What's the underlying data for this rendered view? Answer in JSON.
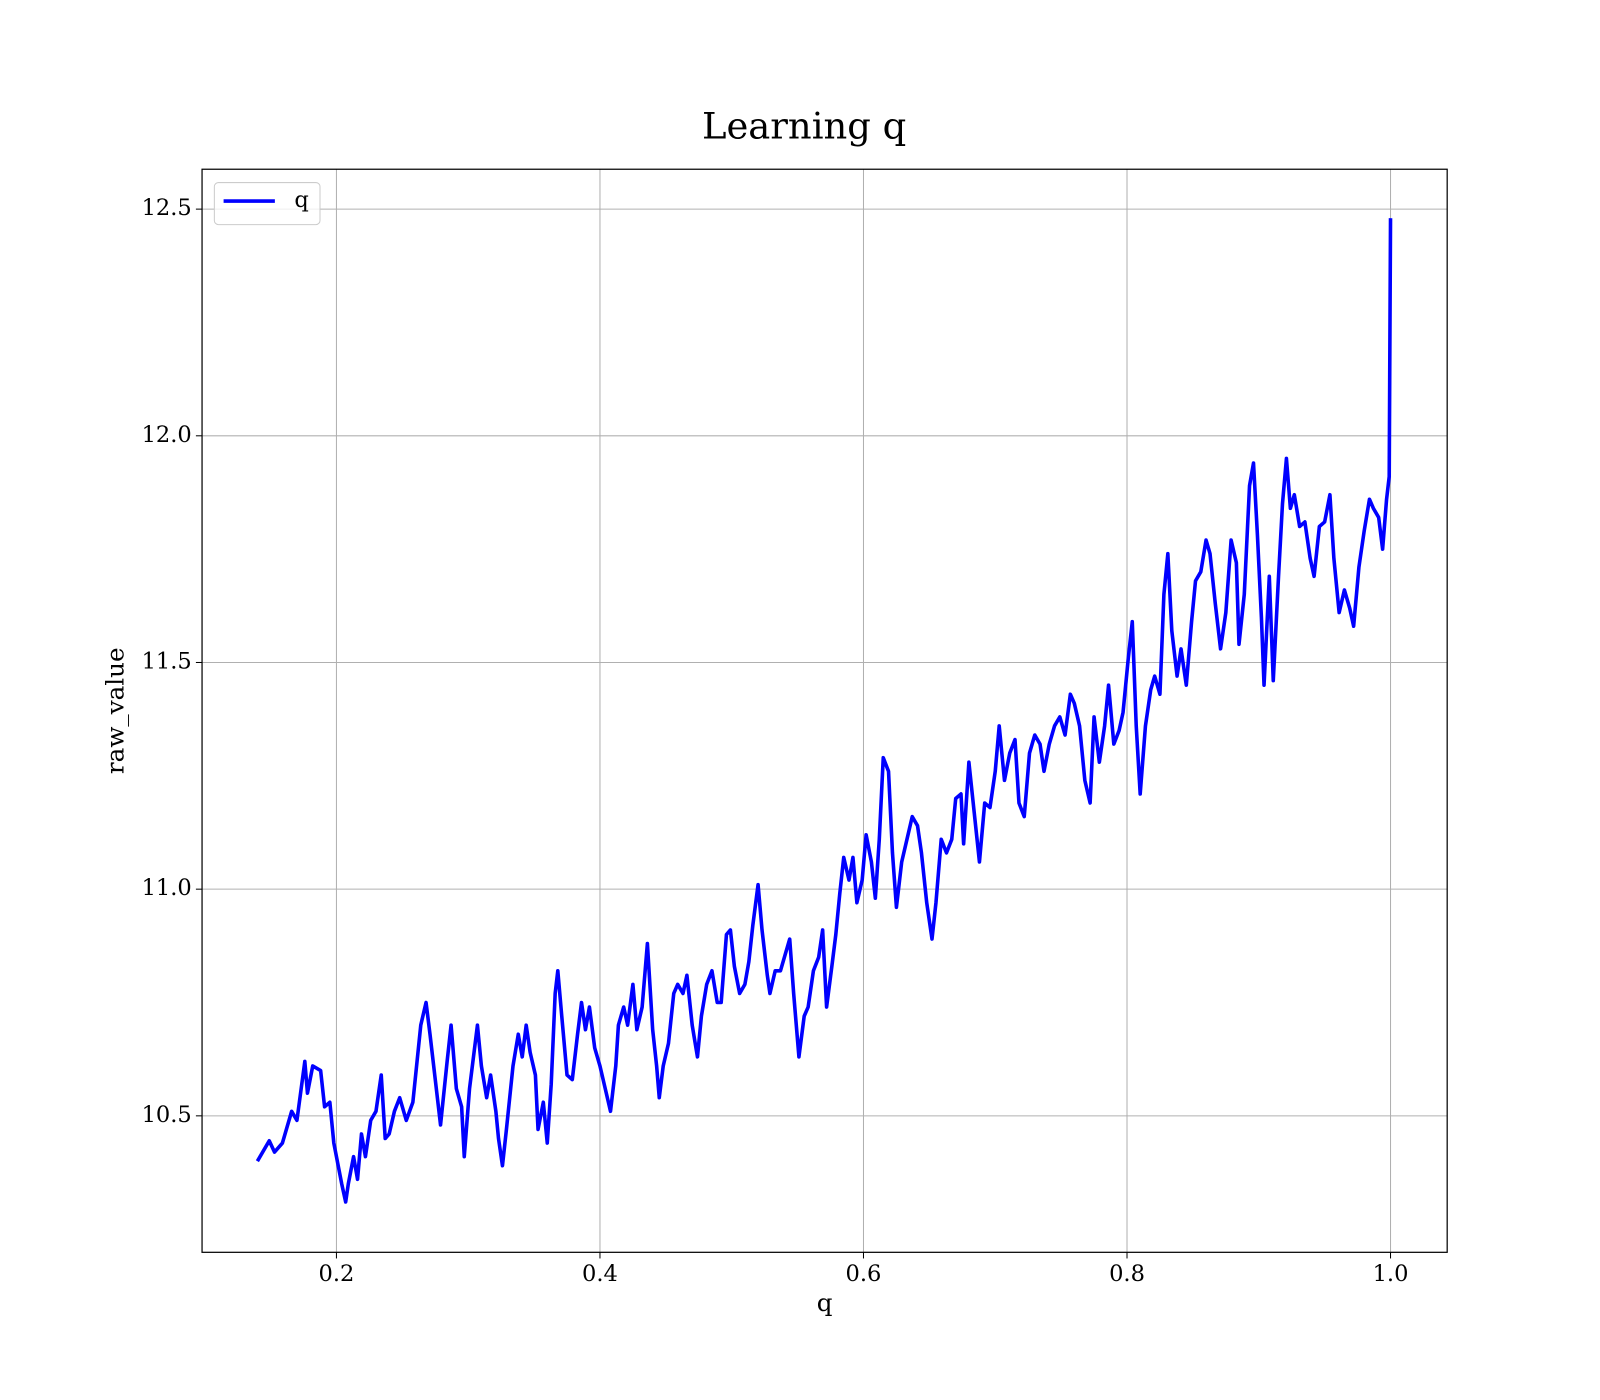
{
  "chart_data": {
    "type": "line",
    "title": "Learning q",
    "xlabel": "q",
    "ylabel": "raw_value",
    "x": [
      0.14,
      0.149,
      0.153,
      0.159,
      0.166,
      0.17,
      0.176,
      0.178,
      0.182,
      0.188,
      0.191,
      0.195,
      0.198,
      0.204,
      0.207,
      0.209,
      0.213,
      0.216,
      0.219,
      0.222,
      0.226,
      0.23,
      0.234,
      0.237,
      0.24,
      0.244,
      0.248,
      0.253,
      0.258,
      0.264,
      0.268,
      0.271,
      0.275,
      0.279,
      0.284,
      0.287,
      0.291,
      0.295,
      0.297,
      0.301,
      0.307,
      0.31,
      0.314,
      0.317,
      0.321,
      0.323,
      0.326,
      0.329,
      0.334,
      0.338,
      0.341,
      0.344,
      0.347,
      0.351,
      0.353,
      0.357,
      0.36,
      0.363,
      0.366,
      0.368,
      0.371,
      0.375,
      0.379,
      0.383,
      0.386,
      0.389,
      0.392,
      0.396,
      0.4,
      0.404,
      0.408,
      0.412,
      0.414,
      0.418,
      0.421,
      0.425,
      0.428,
      0.432,
      0.436,
      0.44,
      0.443,
      0.445,
      0.448,
      0.452,
      0.456,
      0.459,
      0.463,
      0.466,
      0.47,
      0.474,
      0.477,
      0.481,
      0.485,
      0.489,
      0.492,
      0.496,
      0.499,
      0.502,
      0.506,
      0.51,
      0.513,
      0.516,
      0.52,
      0.523,
      0.527,
      0.529,
      0.533,
      0.537,
      0.541,
      0.544,
      0.547,
      0.551,
      0.555,
      0.558,
      0.562,
      0.566,
      0.569,
      0.572,
      0.576,
      0.579,
      0.582,
      0.585,
      0.589,
      0.592,
      0.595,
      0.599,
      0.602,
      0.606,
      0.609,
      0.612,
      0.615,
      0.619,
      0.622,
      0.625,
      0.629,
      0.633,
      0.637,
      0.641,
      0.644,
      0.648,
      0.652,
      0.655,
      0.659,
      0.663,
      0.667,
      0.67,
      0.674,
      0.676,
      0.68,
      0.684,
      0.688,
      0.692,
      0.696,
      0.7,
      0.703,
      0.707,
      0.711,
      0.715,
      0.718,
      0.722,
      0.726,
      0.73,
      0.734,
      0.737,
      0.741,
      0.745,
      0.749,
      0.753,
      0.757,
      0.76,
      0.764,
      0.768,
      0.772,
      0.775,
      0.779,
      0.783,
      0.786,
      0.79,
      0.794,
      0.797,
      0.801,
      0.804,
      0.807,
      0.81,
      0.814,
      0.818,
      0.821,
      0.825,
      0.828,
      0.831,
      0.834,
      0.838,
      0.841,
      0.845,
      0.849,
      0.852,
      0.856,
      0.86,
      0.863,
      0.867,
      0.871,
      0.875,
      0.879,
      0.883,
      0.885,
      0.889,
      0.893,
      0.896,
      0.899,
      0.902,
      0.904,
      0.908,
      0.911,
      0.915,
      0.918,
      0.921,
      0.924,
      0.927,
      0.931,
      0.935,
      0.939,
      0.942,
      0.946,
      0.95,
      0.954,
      0.957,
      0.961,
      0.965,
      0.969,
      0.972,
      0.976,
      0.98,
      0.984,
      0.987,
      0.991,
      0.994,
      0.997,
      0.999,
      1.0
    ],
    "series": [
      {
        "name": "q",
        "color": "#0000ff",
        "values": [
          10.4,
          10.445,
          10.42,
          10.44,
          10.51,
          10.49,
          10.62,
          10.55,
          10.61,
          10.6,
          10.52,
          10.53,
          10.44,
          10.35,
          10.31,
          10.35,
          10.41,
          10.36,
          10.46,
          10.41,
          10.49,
          10.51,
          10.59,
          10.45,
          10.46,
          10.51,
          10.54,
          10.49,
          10.53,
          10.7,
          10.75,
          10.68,
          10.58,
          10.48,
          10.62,
          10.7,
          10.56,
          10.52,
          10.41,
          10.56,
          10.7,
          10.61,
          10.54,
          10.59,
          10.51,
          10.45,
          10.39,
          10.47,
          10.61,
          10.68,
          10.63,
          10.7,
          10.64,
          10.59,
          10.47,
          10.53,
          10.44,
          10.57,
          10.77,
          10.82,
          10.72,
          10.59,
          10.58,
          10.68,
          10.75,
          10.69,
          10.74,
          10.65,
          10.61,
          10.56,
          10.51,
          10.61,
          10.7,
          10.74,
          10.7,
          10.79,
          10.69,
          10.74,
          10.88,
          10.69,
          10.61,
          10.54,
          10.61,
          10.66,
          10.77,
          10.79,
          10.77,
          10.81,
          10.7,
          10.63,
          10.72,
          10.79,
          10.82,
          10.75,
          10.75,
          10.9,
          10.91,
          10.83,
          10.77,
          10.79,
          10.84,
          10.92,
          11.01,
          10.91,
          10.81,
          10.77,
          10.82,
          10.82,
          10.86,
          10.89,
          10.77,
          10.63,
          10.72,
          10.74,
          10.82,
          10.85,
          10.91,
          10.74,
          10.83,
          10.9,
          10.99,
          11.07,
          11.02,
          11.07,
          10.97,
          11.02,
          11.12,
          11.06,
          10.98,
          11.11,
          11.29,
          11.26,
          11.08,
          10.96,
          11.06,
          11.11,
          11.16,
          11.14,
          11.08,
          10.97,
          10.89,
          10.97,
          11.11,
          11.08,
          11.11,
          11.2,
          11.21,
          11.1,
          11.28,
          11.17,
          11.06,
          11.19,
          11.18,
          11.26,
          11.36,
          11.24,
          11.3,
          11.33,
          11.19,
          11.16,
          11.3,
          11.34,
          11.32,
          11.26,
          11.32,
          11.36,
          11.38,
          11.34,
          11.43,
          11.41,
          11.36,
          11.24,
          11.19,
          11.38,
          11.28,
          11.36,
          11.45,
          11.32,
          11.35,
          11.39,
          11.51,
          11.59,
          11.36,
          11.21,
          11.36,
          11.44,
          11.47,
          11.43,
          11.65,
          11.74,
          11.57,
          11.47,
          11.53,
          11.45,
          11.59,
          11.68,
          11.7,
          11.77,
          11.74,
          11.63,
          11.53,
          11.61,
          11.77,
          11.72,
          11.54,
          11.65,
          11.89,
          11.94,
          11.78,
          11.6,
          11.45,
          11.69,
          11.46,
          11.69,
          11.85,
          11.95,
          11.84,
          11.87,
          11.8,
          11.81,
          11.73,
          11.69,
          11.8,
          11.81,
          11.87,
          11.73,
          11.61,
          11.66,
          11.62,
          11.58,
          11.71,
          11.79,
          11.86,
          11.84,
          11.82,
          11.75,
          11.86,
          11.91,
          12.48
        ]
      }
    ],
    "xlim": [
      0.098,
      1.043
    ],
    "ylim": [
      10.199,
      12.588
    ],
    "xticks": [
      0.2,
      0.4,
      0.6,
      0.8,
      {
        "value": 1,
        "label": "1.0"
      }
    ],
    "yticks": [
      10.5,
      {
        "value": 11,
        "label": "11.0"
      },
      11.5,
      {
        "value": 12,
        "label": "12.0"
      },
      12.5
    ],
    "grid": true,
    "legend": "upper-left"
  }
}
